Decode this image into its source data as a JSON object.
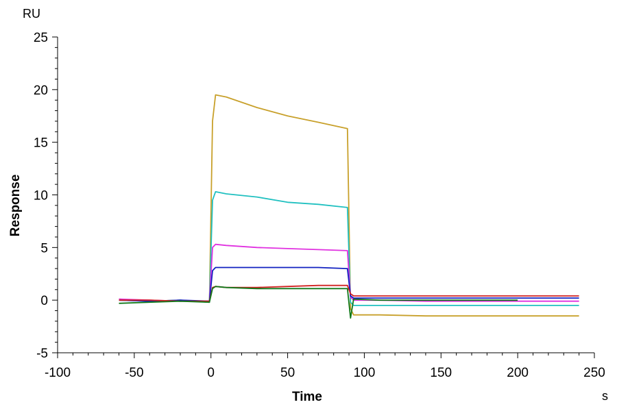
{
  "chart_data": {
    "type": "line",
    "title": "",
    "xlabel": "Time",
    "ylabel": "Response",
    "x_unit": "s",
    "y_unit": "RU",
    "xlim": [
      -100,
      250
    ],
    "ylim": [
      -5,
      25
    ],
    "x_ticks": [
      -100,
      -50,
      0,
      50,
      100,
      150,
      200,
      250
    ],
    "y_ticks": [
      -5,
      0,
      5,
      10,
      15,
      20,
      25
    ],
    "x_minor_step": 10,
    "y_minor_step": 1,
    "grid": false,
    "legend": "none",
    "series": [
      {
        "color": "#C8A02A",
        "x": [
          -60,
          -40,
          -20,
          -1,
          1,
          3,
          10,
          30,
          50,
          70,
          89,
          91,
          93,
          110,
          140,
          170,
          200,
          240
        ],
        "y": [
          0.1,
          -0.1,
          0,
          -0.2,
          17.0,
          19.5,
          19.3,
          18.3,
          17.5,
          16.9,
          16.3,
          -0.8,
          -1.4,
          -1.4,
          -1.5,
          -1.5,
          -1.5,
          -1.5
        ]
      },
      {
        "color": "#20C0C0",
        "x": [
          -60,
          -40,
          -20,
          -1,
          1,
          3,
          10,
          30,
          50,
          70,
          89,
          91,
          93,
          110,
          140,
          170,
          200,
          240
        ],
        "y": [
          0,
          -0.1,
          0,
          -0.2,
          9.5,
          10.3,
          10.1,
          9.8,
          9.3,
          9.1,
          8.8,
          -0.2,
          -0.5,
          -0.5,
          -0.5,
          -0.5,
          -0.5,
          -0.5
        ]
      },
      {
        "color": "#E030E0",
        "x": [
          -60,
          -40,
          -20,
          -1,
          1,
          3,
          10,
          30,
          50,
          70,
          89,
          91,
          93,
          110,
          140,
          170,
          200,
          240
        ],
        "y": [
          0.1,
          0,
          -0.1,
          -0.1,
          5.0,
          5.3,
          5.2,
          5.0,
          4.9,
          4.8,
          4.7,
          0.3,
          0,
          0,
          -0.1,
          -0.1,
          -0.1,
          -0.1
        ]
      },
      {
        "color": "#1020C0",
        "x": [
          -60,
          -40,
          -20,
          -1,
          1,
          3,
          10,
          30,
          50,
          70,
          89,
          91,
          93,
          110,
          140,
          170,
          200,
          240
        ],
        "y": [
          0,
          -0.1,
          0,
          -0.1,
          2.8,
          3.1,
          3.1,
          3.1,
          3.1,
          3.1,
          3.0,
          0.4,
          0.2,
          0.2,
          0.2,
          0.2,
          0.2,
          0.2
        ]
      },
      {
        "color": "#D02020",
        "x": [
          -60,
          -40,
          -20,
          -1,
          1,
          3,
          10,
          30,
          50,
          70,
          89,
          91,
          93,
          110,
          140,
          170,
          200,
          240
        ],
        "y": [
          0,
          0,
          -0.1,
          -0.1,
          1.2,
          1.3,
          1.2,
          1.2,
          1.3,
          1.4,
          1.4,
          0.6,
          0.4,
          0.4,
          0.4,
          0.4,
          0.4,
          0.4
        ]
      },
      {
        "color": "#10781A",
        "x": [
          -60,
          -40,
          -20,
          -1,
          1,
          3,
          10,
          30,
          50,
          70,
          89,
          91,
          93,
          110,
          140,
          170,
          200
        ],
        "y": [
          -0.3,
          -0.2,
          -0.1,
          -0.2,
          1.1,
          1.3,
          1.2,
          1.1,
          1.1,
          1.1,
          1.1,
          -1.7,
          0.1,
          0,
          0,
          0,
          0
        ]
      }
    ]
  }
}
